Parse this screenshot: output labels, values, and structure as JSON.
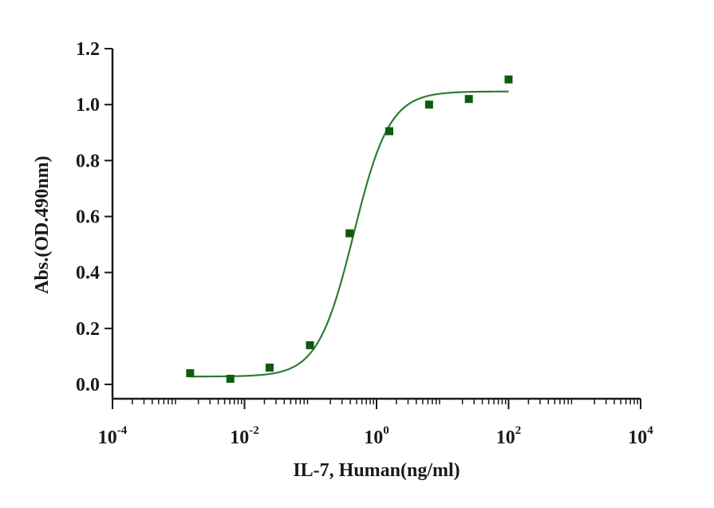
{
  "chart_data": {
    "type": "scatter",
    "xlabel": "IL-7, Human(ng/ml)",
    "ylabel": "Abs.(OD.490nm)",
    "x_scale": "log",
    "xlim": [
      0.0001,
      10000
    ],
    "ylim": [
      0,
      1.2
    ],
    "x_ticks": [
      {
        "base": "10",
        "exp": "-4",
        "value": 0.0001
      },
      {
        "base": "10",
        "exp": "-2",
        "value": 0.01
      },
      {
        "base": "10",
        "exp": "0",
        "value": 1
      },
      {
        "base": "10",
        "exp": "2",
        "value": 100
      },
      {
        "base": "10",
        "exp": "4",
        "value": 10000
      }
    ],
    "y_ticks": [
      "0.0",
      "0.2",
      "0.4",
      "0.6",
      "0.8",
      "1.0",
      "1.2"
    ],
    "y_tick_values": [
      0,
      0.2,
      0.4,
      0.6,
      0.8,
      1.0,
      1.2
    ],
    "grid": false,
    "series": [
      {
        "marker": "square",
        "color": "#0d5c0d",
        "points": [
          {
            "x": 0.0015,
            "y": 0.04
          },
          {
            "x": 0.0061,
            "y": 0.02
          },
          {
            "x": 0.024,
            "y": 0.06
          },
          {
            "x": 0.098,
            "y": 0.14
          },
          {
            "x": 0.39,
            "y": 0.54
          },
          {
            "x": 1.56,
            "y": 0.905
          },
          {
            "x": 6.25,
            "y": 1.0
          },
          {
            "x": 25,
            "y": 1.02
          },
          {
            "x": 100,
            "y": 1.09
          }
        ]
      }
    ],
    "fit_curve": {
      "model": "4PL",
      "color": "#2e7d32",
      "bottom": 0.028,
      "top": 1.047,
      "ec50": 0.45,
      "hill": 1.6,
      "x_range": [
        0.0015,
        100
      ]
    }
  }
}
